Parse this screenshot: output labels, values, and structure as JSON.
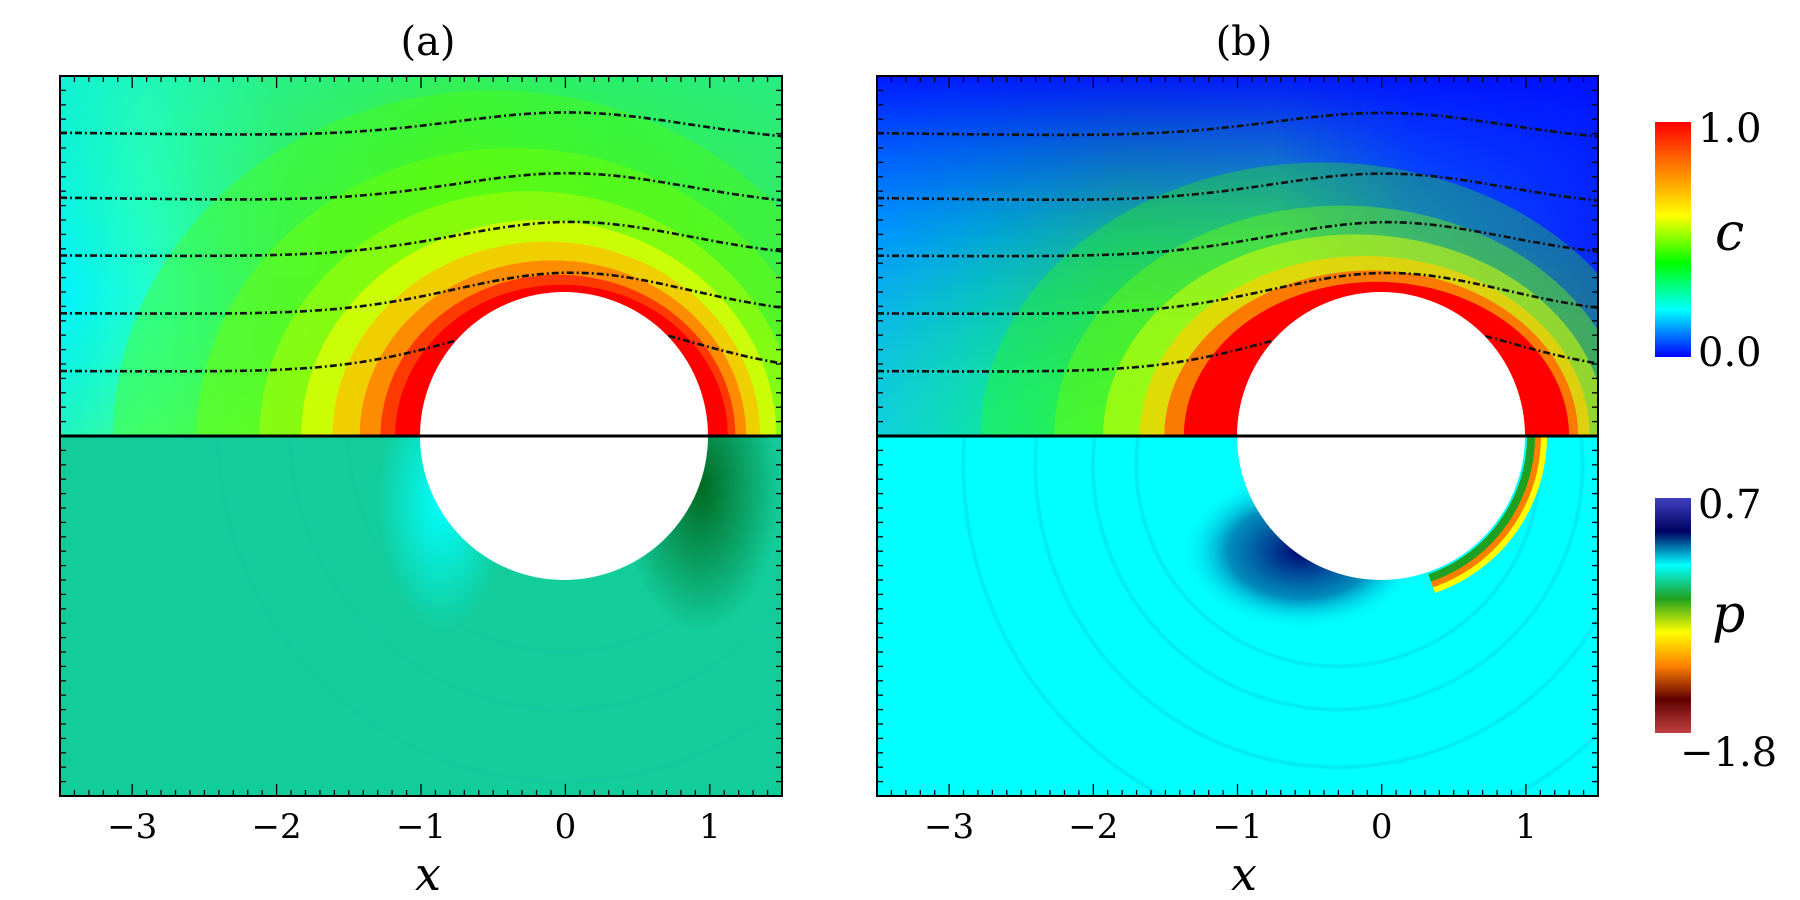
{
  "chart_data": [
    {
      "type": "heatmap",
      "title": "(a)",
      "xlabel": "x",
      "xticks": [
        "−3",
        "−2",
        "−1",
        "0",
        "1"
      ],
      "xtick_values": [
        -3,
        -2,
        -1,
        0,
        1
      ],
      "xlim": [
        -3.5,
        1.5
      ],
      "ylim": [
        -2.5,
        2.5
      ],
      "obstacle": {
        "center": [
          0,
          0
        ],
        "radius": 1
      },
      "upper_half": {
        "field": "c",
        "background_value": 0.5,
        "near_obstacle_value": 1.0
      },
      "lower_half": {
        "field": "p",
        "background_value": -0.55,
        "front_value": -0.2,
        "rear_value": -0.9
      },
      "streamlines_y": [
        2.1,
        1.65,
        1.25,
        0.85,
        0.45
      ],
      "colors": {
        "upper_bg": "#2ee86a",
        "lower_bg": "#12cc9a"
      }
    },
    {
      "type": "heatmap",
      "title": "(b)",
      "xlabel": "x",
      "xticks": [
        "−3",
        "−2",
        "−1",
        "0",
        "1"
      ],
      "xtick_values": [
        -3,
        -2,
        -1,
        0,
        1
      ],
      "xlim": [
        -3.5,
        1.5
      ],
      "ylim": [
        -2.5,
        2.5
      ],
      "obstacle": {
        "center": [
          0,
          0
        ],
        "radius": 1
      },
      "upper_half": {
        "field": "c",
        "background_value": 0.05,
        "near_obstacle_value": 1.0
      },
      "lower_half": {
        "field": "p",
        "background_value": 0.4,
        "front_value": 0.7,
        "rear_value": -1.8
      },
      "streamlines_y": [
        2.1,
        1.65,
        1.25,
        0.85,
        0.45
      ],
      "colors": {
        "upper_bg": "#0a12ff",
        "lower_bg": "#00ffff"
      }
    }
  ],
  "colorbars": [
    {
      "variable": "c",
      "max_label": "1.0",
      "min_label": "0.0",
      "colors": [
        "#0000ff",
        "#00ffff",
        "#00ff00",
        "#ffff00",
        "#ff8000",
        "#ff0000"
      ]
    },
    {
      "variable": "p",
      "max_label": "0.7",
      "min_label": "−1.8",
      "colors": [
        "#c04040",
        "#600000",
        "#ff8000",
        "#ffff00",
        "#20a020",
        "#00ffff",
        "#000060",
        "#4040c0"
      ]
    }
  ]
}
